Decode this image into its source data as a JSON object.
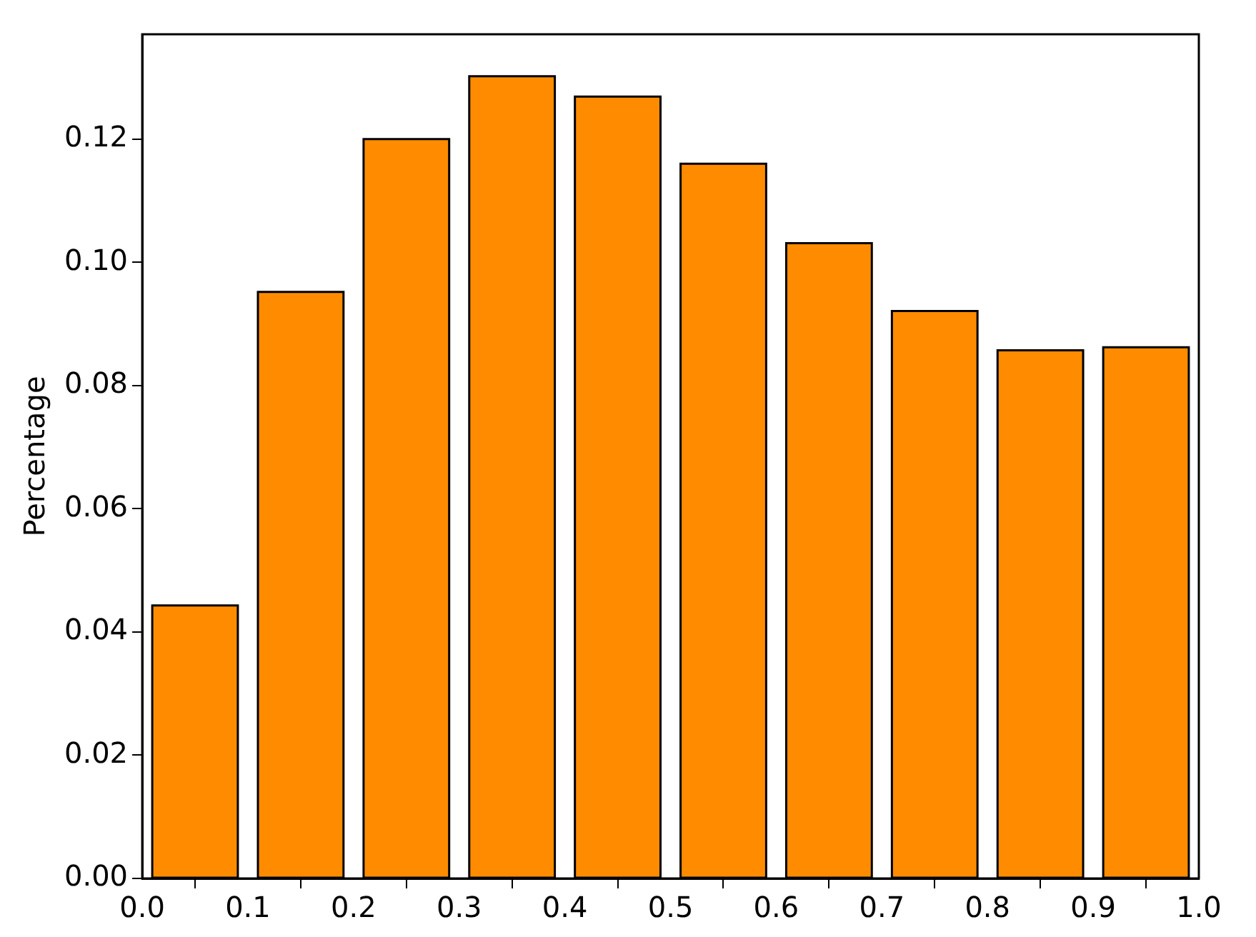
{
  "chart_data": {
    "type": "histogram",
    "ylabel": "Percentage",
    "bins": [
      0,
      0.1,
      0.2,
      0.3,
      0.4,
      0.5,
      0.6,
      0.7,
      0.8,
      0.9,
      1.0
    ],
    "values": [
      0.0443,
      0.0952,
      0.12,
      0.1302,
      0.1269,
      0.116,
      0.1031,
      0.0921,
      0.0857,
      0.0862
    ],
    "color": "#ff8c00",
    "xlim": [
      0,
      1
    ],
    "xticks": [
      {
        "value": 0,
        "label": "0.0"
      },
      {
        "value": 0.1,
        "label": "0.1"
      },
      {
        "value": 0.2,
        "label": "0.2"
      },
      {
        "value": 0.3,
        "label": "0.3"
      },
      {
        "value": 0.4,
        "label": "0.4"
      },
      {
        "value": 0.5,
        "label": "0.5"
      },
      {
        "value": 0.6,
        "label": "0.6"
      },
      {
        "value": 0.7,
        "label": "0.7"
      },
      {
        "value": 0.8,
        "label": "0.8"
      },
      {
        "value": 0.9,
        "label": "0.9"
      },
      {
        "value": 1,
        "label": "1.0"
      }
    ],
    "ylim": [
      0,
      0.137
    ],
    "yticks": [
      {
        "value": 0,
        "label": "0.00"
      },
      {
        "value": 0.02,
        "label": "0.02"
      },
      {
        "value": 0.04,
        "label": "0.04"
      },
      {
        "value": 0.06,
        "label": "0.06"
      },
      {
        "value": 0.08,
        "label": "0.08"
      },
      {
        "value": 0.1,
        "label": "0.10"
      },
      {
        "value": 0.12,
        "label": "0.12"
      }
    ],
    "grid": false
  }
}
